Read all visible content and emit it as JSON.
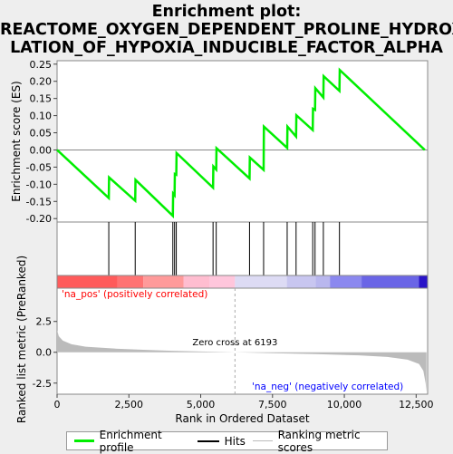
{
  "window": {
    "title_line1": "Enrichment plot:",
    "title_line2": "REACTOME_OXYGEN_DEPENDENT_PROLINE_HYDROXY",
    "title_line3": "LATION_OF_HYPOXIA_INDUCIBLE_FACTOR_ALPHA"
  },
  "colors": {
    "es_line": "#00ee00",
    "hits": "#000000",
    "metric_fill": "#bbbbbb",
    "pos": "#ff0000",
    "neg": "#0000ff"
  },
  "chart_data": {
    "type": "line",
    "x_total": 12900,
    "xlabel": "Rank in Ordered Dataset",
    "x_ticks": [
      0,
      2500,
      5000,
      7500,
      10000,
      12500
    ],
    "x_tick_labels": [
      "0",
      "2,500",
      "5,000",
      "7,500",
      "10,000",
      "12,500"
    ],
    "es": {
      "ylabel": "Enrichment score (ES)",
      "ylim": [
        -0.21,
        0.26
      ],
      "y_ticks": [
        -0.2,
        -0.15,
        -0.1,
        -0.05,
        0.0,
        0.05,
        0.1,
        0.15,
        0.2,
        0.25
      ],
      "y_tick_labels": [
        "-0.20",
        "-0.15",
        "-0.10",
        "-0.05",
        "0.00",
        "0.05",
        "0.10",
        "0.15",
        "0.20",
        "0.25"
      ],
      "points": [
        [
          0,
          0.0
        ],
        [
          1800,
          -0.14
        ],
        [
          1810,
          -0.08
        ],
        [
          2720,
          -0.148
        ],
        [
          2730,
          -0.087
        ],
        [
          4030,
          -0.192
        ],
        [
          4040,
          -0.127
        ],
        [
          4090,
          -0.132
        ],
        [
          4100,
          -0.07
        ],
        [
          4150,
          -0.072
        ],
        [
          4160,
          -0.009
        ],
        [
          5430,
          -0.11
        ],
        [
          5440,
          -0.048
        ],
        [
          5540,
          -0.057
        ],
        [
          5550,
          0.005
        ],
        [
          6700,
          -0.083
        ],
        [
          6710,
          -0.022
        ],
        [
          7190,
          -0.058
        ],
        [
          7200,
          0.068
        ],
        [
          8010,
          0.006
        ],
        [
          8020,
          0.068
        ],
        [
          8320,
          0.039
        ],
        [
          8330,
          0.101
        ],
        [
          8900,
          0.058
        ],
        [
          8910,
          0.12
        ],
        [
          8980,
          0.117
        ],
        [
          8990,
          0.18
        ],
        [
          9270,
          0.153
        ],
        [
          9280,
          0.215
        ],
        [
          9830,
          0.172
        ],
        [
          9840,
          0.233
        ],
        [
          12800,
          0.0
        ]
      ],
      "series_name": "Enrichment profile"
    },
    "hits": {
      "series_name": "Hits",
      "positions": [
        1800,
        2720,
        4030,
        4090,
        4150,
        5430,
        5540,
        6700,
        7190,
        8010,
        8320,
        8900,
        8980,
        9270,
        9830
      ]
    },
    "metric": {
      "series_name": "Ranking metric scores",
      "ylabel": "Ranked list metric (PreRanked)",
      "ylim": [
        -3.4,
        5.2
      ],
      "y_ticks": [
        -2.5,
        0.0,
        2.5
      ],
      "y_tick_labels": [
        "-2.5",
        "0.0",
        "2.5"
      ],
      "profile": [
        [
          0,
          1.8
        ],
        [
          60,
          1.3
        ],
        [
          200,
          0.95
        ],
        [
          500,
          0.65
        ],
        [
          1000,
          0.45
        ],
        [
          2000,
          0.3
        ],
        [
          3000,
          0.2
        ],
        [
          4000,
          0.12
        ],
        [
          5000,
          0.06
        ],
        [
          6193,
          0.0
        ],
        [
          7500,
          -0.07
        ],
        [
          9000,
          -0.15
        ],
        [
          10500,
          -0.25
        ],
        [
          11500,
          -0.38
        ],
        [
          12200,
          -0.6
        ],
        [
          12600,
          -0.95
        ],
        [
          12750,
          -1.5
        ],
        [
          12830,
          -2.5
        ],
        [
          12860,
          -3.2
        ]
      ],
      "zero_cross_rank": 6193,
      "zero_cross_label": "Zero cross at 6193",
      "pos_label": "'na_pos' (positively correlated)",
      "neg_label": "'na_neg' (negatively correlated)"
    },
    "heat_segments": [
      {
        "from": 0,
        "to": 2100,
        "color": "#ff5b5b"
      },
      {
        "from": 2100,
        "to": 3000,
        "color": "#ff7373"
      },
      {
        "from": 3000,
        "to": 4400,
        "color": "#ff9a9a"
      },
      {
        "from": 4400,
        "to": 5300,
        "color": "#ffbdd0"
      },
      {
        "from": 5300,
        "to": 6193,
        "color": "#ffc6dc"
      },
      {
        "from": 6193,
        "to": 8000,
        "color": "#dddbf4"
      },
      {
        "from": 8000,
        "to": 9000,
        "color": "#c8c6f0"
      },
      {
        "from": 9000,
        "to": 9500,
        "color": "#b9b7ee"
      },
      {
        "from": 9500,
        "to": 10600,
        "color": "#8b88ef"
      },
      {
        "from": 10600,
        "to": 12600,
        "color": "#6a65e6"
      },
      {
        "from": 12600,
        "to": 12900,
        "color": "#2a14c8"
      }
    ]
  },
  "legend": {
    "items": [
      {
        "label": "Enrichment profile"
      },
      {
        "label": "Hits"
      },
      {
        "label": "Ranking metric scores"
      }
    ]
  }
}
